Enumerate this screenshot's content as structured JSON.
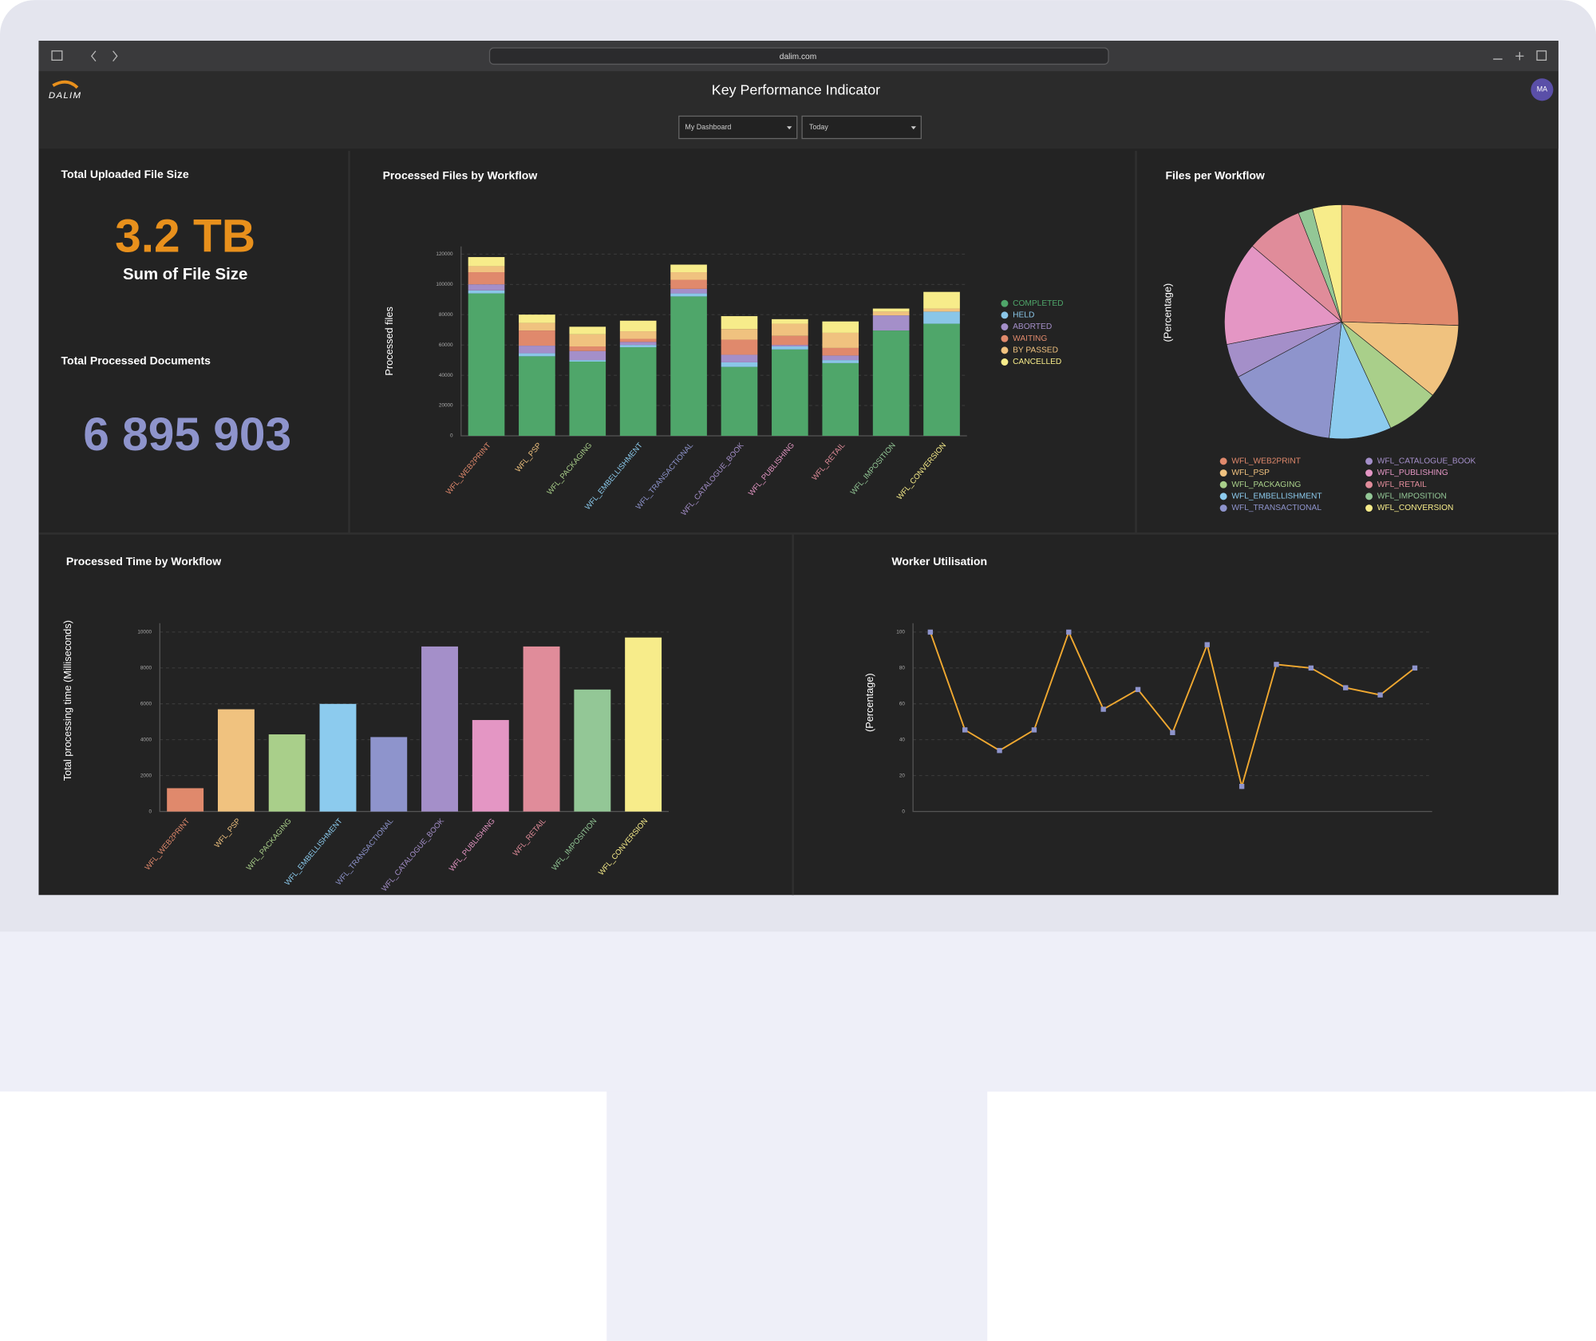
{
  "browser": {
    "url": "dalim.com"
  },
  "header": {
    "logo": "DALIM",
    "title": "Key Performance Indicator",
    "avatar": "MA",
    "filters": [
      "My Dashboard",
      "Today"
    ]
  },
  "kpis": [
    {
      "title": "Total Uploaded File Size",
      "value": "3.2 TB",
      "caption": "Sum of File Size"
    },
    {
      "title": "Total Processed Documents",
      "value": "6 895 903"
    }
  ],
  "chart_data": [
    {
      "type": "stacked_bar",
      "title": "Processed Files by Workflow",
      "y_label": "Processed files",
      "categories": [
        "WFL_WEB2PRINT",
        "WFL_PSP",
        "WFL_PACKAGING",
        "WFL_EMBELLISHMENT",
        "WFL_TRANSACTIONAL",
        "WFL_CATALOGUE_BOOK",
        "WFL_PUBLISHING",
        "WFL_RETAIL",
        "WFL_IMPOSITION",
        "WFL_CONVERSION"
      ],
      "category_colors": [
        "#e0896c",
        "#f0c27f",
        "#a9cf8a",
        "#8ccbee",
        "#8e94cc",
        "#a48fc9",
        "#e496c4",
        "#e08c9a",
        "#93c796",
        "#f7ec8a"
      ],
      "series": [
        {
          "name": "COMPLETED",
          "color": "#4fa66a",
          "values": [
            94000,
            52500,
            49000,
            58500,
            92000,
            45500,
            57000,
            48000,
            69500,
            74000
          ]
        },
        {
          "name": "HELD",
          "color": "#8ac6e8",
          "values": [
            2000,
            2000,
            1000,
            1500,
            2000,
            3000,
            2000,
            2000,
            0,
            8000
          ]
        },
        {
          "name": "ABORTED",
          "color": "#a48fc9",
          "values": [
            4000,
            5000,
            6000,
            2000,
            3000,
            5000,
            1000,
            3000,
            10000,
            0
          ]
        },
        {
          "name": "WAITING",
          "color": "#e0896c",
          "values": [
            8000,
            10000,
            3000,
            2000,
            6000,
            10000,
            6000,
            5000,
            0,
            0
          ]
        },
        {
          "name": "BY PASSED",
          "color": "#f0c27f",
          "values": [
            4000,
            5000,
            8000,
            5000,
            5000,
            7000,
            8000,
            10000,
            2500,
            2000
          ]
        },
        {
          "name": "CANCELLED",
          "color": "#f7ec8a",
          "values": [
            6000,
            5500,
            5000,
            7000,
            5000,
            8500,
            3000,
            7500,
            2000,
            11000
          ]
        }
      ],
      "ylim": [
        0,
        125000
      ],
      "yticks": [
        0,
        20000,
        40000,
        60000,
        80000,
        100000,
        120000
      ],
      "grid": true
    },
    {
      "type": "pie",
      "title": "Files per Workflow",
      "y_label": "(Percentage)",
      "categories": [
        "WFL_WEB2PRINT",
        "WFL_PSP",
        "WFL_PACKAGING",
        "WFL_EMBELLISHMENT",
        "WFL_TRANSACTIONAL",
        "WFL_CATALOGUE_BOOK",
        "WFL_PUBLISHING",
        "WFL_RETAIL",
        "WFL_IMPOSITION",
        "WFL_CONVERSION"
      ],
      "values": [
        25.5,
        10.3,
        7.3,
        8.6,
        15.5,
        4.7,
        14.3,
        7.8,
        2,
        4
      ],
      "colors": [
        "#e0896c",
        "#f0c27f",
        "#a9cf8a",
        "#8ccbee",
        "#8e94cc",
        "#a48fc9",
        "#e496c4",
        "#e08c9a",
        "#93c796",
        "#f7ec8a"
      ]
    },
    {
      "type": "bar",
      "title": "Processed Time by Workflow",
      "y_label": "Total processing time (Milliseconds)",
      "categories": [
        "WFL_WEB2PRINT",
        "WFL_PSP",
        "WFL_PACKAGING",
        "WFL_EMBELLISHMENT",
        "WFL_TRANSACTIONAL",
        "WFL_CATALOGUE_BOOK",
        "WFL_PUBLISHING",
        "WFL_RETAIL",
        "WFL_IMPOSITION",
        "WFL_CONVERSION"
      ],
      "values": [
        1300,
        5700,
        4300,
        6000,
        4150,
        9200,
        5100,
        9200,
        6800,
        9700
      ],
      "colors": [
        "#e0896c",
        "#f0c27f",
        "#a9cf8a",
        "#8ccbee",
        "#8e94cc",
        "#a48fc9",
        "#e496c4",
        "#e08c9a",
        "#93c796",
        "#f7ec8a"
      ],
      "ylim": [
        0,
        10500
      ],
      "yticks": [
        0,
        2000,
        4000,
        6000,
        8000,
        10000
      ],
      "grid": true
    },
    {
      "type": "line",
      "title": "Worker Utilisation",
      "y_label": "(Percentage)",
      "categories": [
        null,
        null,
        null,
        null,
        null,
        null,
        null,
        null,
        null,
        null,
        null,
        null,
        null,
        null,
        null
      ],
      "values": [
        100,
        45.5,
        34,
        45.5,
        100,
        57,
        68,
        44,
        93,
        14,
        82,
        80,
        69,
        65,
        80
      ],
      "color": "#f0a830",
      "marker_color": "#8e94cc",
      "ylim": [
        0,
        105
      ],
      "yticks": [
        0,
        20,
        40,
        60,
        80,
        100
      ],
      "grid": true
    }
  ]
}
